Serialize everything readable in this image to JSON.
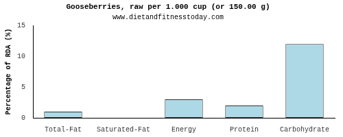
{
  "chart_data": {
    "type": "bar",
    "title": "Gooseberries, raw per 1.000 cup (or 150.00 g)",
    "subtitle": "www.dietandfitnesstoday.com",
    "y_label": "Percentage of RDA (%)",
    "categories": [
      "Total-Fat",
      "Saturated-Fat",
      "Energy",
      "Protein",
      "Carbohydrate"
    ],
    "values": [
      1,
      0,
      3,
      2,
      12
    ],
    "color": "#add8e6",
    "ylim": [
      0,
      15
    ],
    "yticks": [
      0,
      5,
      10,
      15
    ],
    "grid": false
  }
}
